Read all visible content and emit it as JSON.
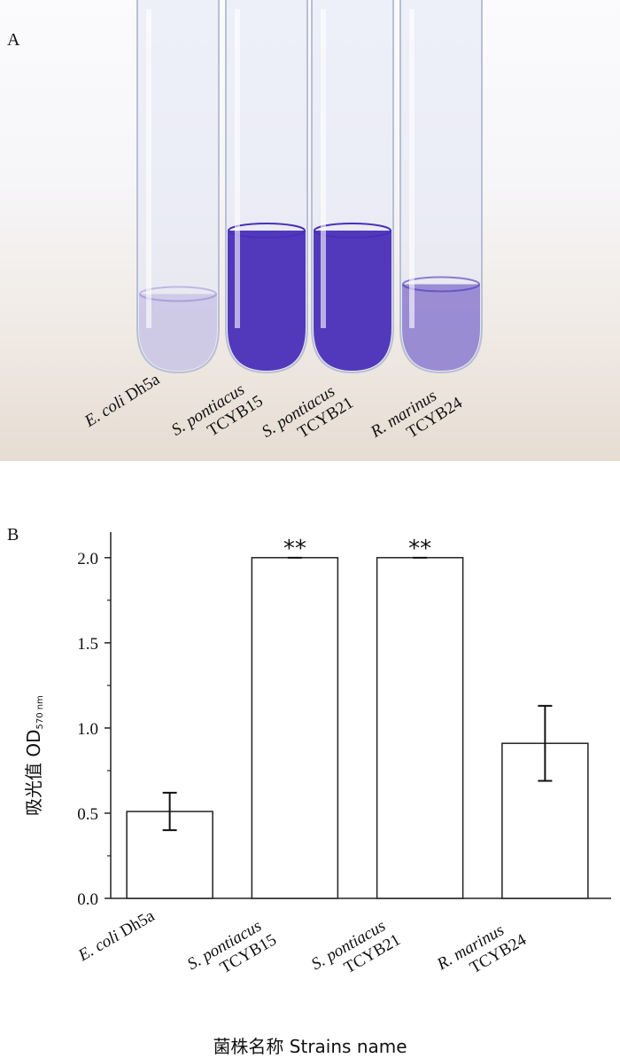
{
  "panel_a": {
    "label": "A",
    "tubes": [
      {
        "species": "E. coli",
        "strain": "Dh5a",
        "stain_level": 0.05
      },
      {
        "species": "S. pontiacus",
        "strain": "TCYB15",
        "stain_level": 1.0
      },
      {
        "species": "S. pontiacus",
        "strain": "TCYB21",
        "stain_level": 1.0
      },
      {
        "species": "R. marinus",
        "strain": "TCYB24",
        "stain_level": 0.45
      }
    ],
    "stain_color": "#4a2fb8"
  },
  "panel_b": {
    "label": "B",
    "xlabel": "菌株名称 Strains name",
    "ylabel_main": "吸光值 OD",
    "ylabel_sub": "570 nm"
  },
  "chart_data": {
    "type": "bar",
    "categories": [
      {
        "species": "E. coli",
        "strain": "Dh5a"
      },
      {
        "species": "S. pontiacus",
        "strain": "TCYB15"
      },
      {
        "species": "S. pontiacus",
        "strain": "TCYB21"
      },
      {
        "species": "R. marinus",
        "strain": "TCYB24"
      }
    ],
    "values": [
      0.51,
      2.0,
      2.0,
      0.91
    ],
    "errors": [
      0.11,
      0.005,
      0.005,
      0.22
    ],
    "annotations": [
      "",
      "**",
      "**",
      ""
    ],
    "ylim": [
      0.0,
      2.15
    ],
    "yticks": [
      "0.0",
      "0.5",
      "1.0",
      "1.5",
      "2.0"
    ],
    "grid": false,
    "bar_fill": "#ffffff",
    "bar_stroke": "#222222"
  }
}
